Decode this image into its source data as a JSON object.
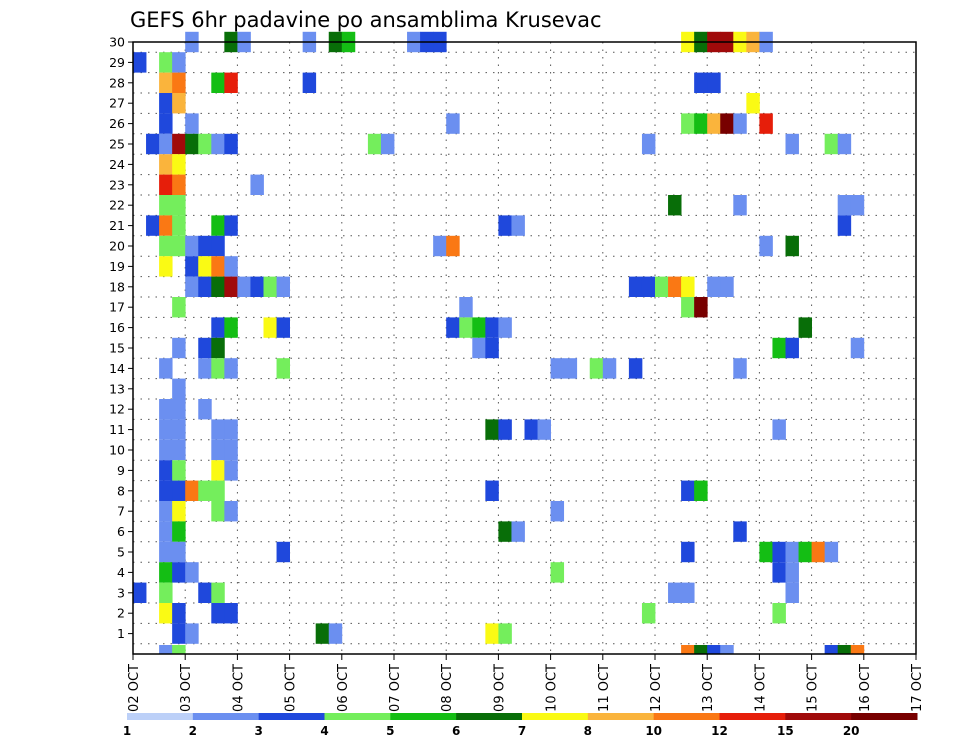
{
  "chart_data": {
    "type": "heatmap",
    "title": "GEFS 6hr padavine po ansamblima Krusevac",
    "y_ticks": [
      "1",
      "2",
      "3",
      "4",
      "5",
      "6",
      "7",
      "8",
      "9",
      "10",
      "11",
      "12",
      "13",
      "14",
      "15",
      "16",
      "17",
      "18",
      "19",
      "20",
      "21",
      "22",
      "23",
      "24",
      "25",
      "26",
      "27",
      "28",
      "29",
      "30"
    ],
    "x_ticks": [
      "02 OCT",
      "03 OCT",
      "04 OCT",
      "05 OCT",
      "06 OCT",
      "07 OCT",
      "08 OCT",
      "09 OCT",
      "10 OCT",
      "11 OCT",
      "12 OCT",
      "13 OCT",
      "14 OCT",
      "15 OCT",
      "16 OCT",
      "17 OCT"
    ],
    "legend": {
      "position": "bottom",
      "colors": [
        "#bcd0f8",
        "#6b8ff0",
        "#1f48dc",
        "#74ee5c",
        "#14be14",
        "#086e08",
        "#fafa14",
        "#fab43c",
        "#fa7814",
        "#e61e0a",
        "#a00a0a",
        "#780000"
      ],
      "labels": [
        "1",
        "2",
        "3",
        "4",
        "5",
        "6",
        "7",
        "8",
        "10",
        "12",
        "15",
        "20"
      ]
    },
    "grid": true,
    "cells": [
      [
        3.0,
        30,
        1
      ],
      [
        3.75,
        30,
        5
      ],
      [
        4.0,
        30,
        1
      ],
      [
        5.25,
        30,
        1
      ],
      [
        5.75,
        30,
        5
      ],
      [
        6.0,
        30,
        4
      ],
      [
        7.25,
        30,
        1
      ],
      [
        7.5,
        30,
        2
      ],
      [
        7.75,
        30,
        2
      ],
      [
        12.5,
        30,
        6
      ],
      [
        12.75,
        30,
        5
      ],
      [
        13.0,
        30,
        10
      ],
      [
        13.25,
        30,
        10
      ],
      [
        13.5,
        30,
        6
      ],
      [
        13.75,
        30,
        7
      ],
      [
        14.0,
        30,
        1
      ],
      [
        2.0,
        29,
        2
      ],
      [
        2.5,
        29,
        3
      ],
      [
        2.75,
        29,
        1
      ],
      [
        2.5,
        28,
        7
      ],
      [
        2.75,
        28,
        8
      ],
      [
        3.5,
        28,
        4
      ],
      [
        3.75,
        28,
        9
      ],
      [
        5.25,
        28,
        2
      ],
      [
        12.75,
        28,
        2
      ],
      [
        13.0,
        28,
        2
      ],
      [
        2.5,
        27,
        2
      ],
      [
        2.75,
        27,
        7
      ],
      [
        13.75,
        27,
        6
      ],
      [
        2.5,
        26,
        2
      ],
      [
        3.0,
        26,
        1
      ],
      [
        8.0,
        26,
        1
      ],
      [
        12.5,
        26,
        3
      ],
      [
        12.75,
        26,
        4
      ],
      [
        13.0,
        26,
        7
      ],
      [
        13.25,
        26,
        11
      ],
      [
        13.5,
        26,
        1
      ],
      [
        14.0,
        26,
        9
      ],
      [
        2.25,
        25,
        2
      ],
      [
        2.5,
        25,
        1
      ],
      [
        2.75,
        25,
        10
      ],
      [
        3.0,
        25,
        5
      ],
      [
        3.25,
        25,
        3
      ],
      [
        3.5,
        25,
        1
      ],
      [
        3.75,
        25,
        2
      ],
      [
        6.5,
        25,
        3
      ],
      [
        6.75,
        25,
        1
      ],
      [
        11.75,
        25,
        1
      ],
      [
        14.5,
        25,
        1
      ],
      [
        15.25,
        25,
        3
      ],
      [
        15.5,
        25,
        1
      ],
      [
        2.5,
        24,
        7
      ],
      [
        2.75,
        24,
        6
      ],
      [
        2.5,
        23,
        9
      ],
      [
        2.75,
        23,
        8
      ],
      [
        4.25,
        23,
        1
      ],
      [
        2.5,
        22,
        3
      ],
      [
        2.75,
        22,
        3
      ],
      [
        12.25,
        22,
        5
      ],
      [
        13.5,
        22,
        1
      ],
      [
        15.5,
        22,
        1
      ],
      [
        15.75,
        22,
        1
      ],
      [
        2.25,
        21,
        2
      ],
      [
        2.5,
        21,
        8
      ],
      [
        2.75,
        21,
        3
      ],
      [
        3.5,
        21,
        4
      ],
      [
        3.75,
        21,
        2
      ],
      [
        9.0,
        21,
        2
      ],
      [
        9.25,
        21,
        1
      ],
      [
        15.5,
        21,
        2
      ],
      [
        2.5,
        20,
        3
      ],
      [
        2.75,
        20,
        3
      ],
      [
        3.0,
        20,
        1
      ],
      [
        3.25,
        20,
        2
      ],
      [
        3.5,
        20,
        2
      ],
      [
        7.75,
        20,
        1
      ],
      [
        8.0,
        20,
        8
      ],
      [
        14.0,
        20,
        1
      ],
      [
        14.5,
        20,
        5
      ],
      [
        2.5,
        19,
        6
      ],
      [
        3.0,
        19,
        2
      ],
      [
        3.25,
        19,
        6
      ],
      [
        3.5,
        19,
        8
      ],
      [
        3.75,
        19,
        1
      ],
      [
        3.0,
        18,
        1
      ],
      [
        3.25,
        18,
        2
      ],
      [
        3.5,
        18,
        5
      ],
      [
        3.75,
        18,
        10
      ],
      [
        4.0,
        18,
        1
      ],
      [
        4.25,
        18,
        2
      ],
      [
        4.5,
        18,
        3
      ],
      [
        4.75,
        18,
        1
      ],
      [
        11.5,
        18,
        2
      ],
      [
        11.75,
        18,
        2
      ],
      [
        12.0,
        18,
        3
      ],
      [
        12.25,
        18,
        8
      ],
      [
        12.5,
        18,
        6
      ],
      [
        13.0,
        18,
        1
      ],
      [
        13.25,
        18,
        1
      ],
      [
        2.75,
        17,
        3
      ],
      [
        8.25,
        17,
        1
      ],
      [
        12.5,
        17,
        3
      ],
      [
        12.75,
        17,
        11
      ],
      [
        3.5,
        16,
        2
      ],
      [
        3.75,
        16,
        4
      ],
      [
        4.5,
        16,
        6
      ],
      [
        4.75,
        16,
        2
      ],
      [
        8.0,
        16,
        2
      ],
      [
        8.25,
        16,
        3
      ],
      [
        8.5,
        16,
        4
      ],
      [
        8.75,
        16,
        2
      ],
      [
        9.0,
        16,
        1
      ],
      [
        14.75,
        16,
        5
      ],
      [
        2.75,
        15,
        1
      ],
      [
        3.25,
        15,
        2
      ],
      [
        3.5,
        15,
        5
      ],
      [
        8.5,
        15,
        1
      ],
      [
        8.75,
        15,
        2
      ],
      [
        14.25,
        15,
        4
      ],
      [
        14.5,
        15,
        2
      ],
      [
        15.75,
        15,
        1
      ],
      [
        2.5,
        14,
        1
      ],
      [
        3.25,
        14,
        1
      ],
      [
        3.5,
        14,
        3
      ],
      [
        3.75,
        14,
        1
      ],
      [
        4.75,
        14,
        3
      ],
      [
        10.0,
        14,
        1
      ],
      [
        10.25,
        14,
        1
      ],
      [
        10.75,
        14,
        3
      ],
      [
        11.0,
        14,
        1
      ],
      [
        11.5,
        14,
        2
      ],
      [
        13.5,
        14,
        1
      ],
      [
        2.75,
        13,
        1
      ],
      [
        2.5,
        12,
        1
      ],
      [
        2.75,
        12,
        1
      ],
      [
        3.25,
        12,
        1
      ],
      [
        2.5,
        11,
        1
      ],
      [
        2.75,
        11,
        1
      ],
      [
        3.5,
        11,
        1
      ],
      [
        3.75,
        11,
        1
      ],
      [
        8.75,
        11,
        5
      ],
      [
        9.0,
        11,
        2
      ],
      [
        9.5,
        11,
        2
      ],
      [
        9.75,
        11,
        1
      ],
      [
        14.25,
        11,
        1
      ],
      [
        2.5,
        10,
        1
      ],
      [
        2.75,
        10,
        1
      ],
      [
        3.5,
        10,
        1
      ],
      [
        3.75,
        10,
        1
      ],
      [
        2.5,
        9,
        2
      ],
      [
        2.75,
        9,
        3
      ],
      [
        3.5,
        9,
        6
      ],
      [
        3.75,
        9,
        1
      ],
      [
        2.5,
        8,
        2
      ],
      [
        2.75,
        8,
        2
      ],
      [
        3.0,
        8,
        8
      ],
      [
        3.25,
        8,
        3
      ],
      [
        3.5,
        8,
        3
      ],
      [
        8.75,
        8,
        2
      ],
      [
        12.5,
        8,
        2
      ],
      [
        12.75,
        8,
        4
      ],
      [
        2.5,
        7,
        1
      ],
      [
        2.75,
        7,
        6
      ],
      [
        3.5,
        7,
        3
      ],
      [
        3.75,
        7,
        1
      ],
      [
        10.0,
        7,
        1
      ],
      [
        2.5,
        6,
        1
      ],
      [
        2.75,
        6,
        4
      ],
      [
        9.0,
        6,
        5
      ],
      [
        9.25,
        6,
        1
      ],
      [
        13.5,
        6,
        2
      ],
      [
        2.5,
        5,
        1
      ],
      [
        2.75,
        5,
        1
      ],
      [
        4.75,
        5,
        2
      ],
      [
        12.5,
        5,
        2
      ],
      [
        14.0,
        5,
        4
      ],
      [
        14.25,
        5,
        2
      ],
      [
        14.5,
        5,
        1
      ],
      [
        14.75,
        5,
        4
      ],
      [
        15.0,
        5,
        8
      ],
      [
        15.25,
        5,
        1
      ],
      [
        2.5,
        4,
        4
      ],
      [
        2.75,
        4,
        2
      ],
      [
        3.0,
        4,
        1
      ],
      [
        10.0,
        4,
        3
      ],
      [
        14.25,
        4,
        2
      ],
      [
        14.5,
        4,
        1
      ],
      [
        2.0,
        3,
        2
      ],
      [
        2.5,
        3,
        3
      ],
      [
        3.25,
        3,
        2
      ],
      [
        3.5,
        3,
        3
      ],
      [
        12.25,
        3,
        1
      ],
      [
        12.5,
        3,
        1
      ],
      [
        14.5,
        3,
        1
      ],
      [
        2.5,
        2,
        6
      ],
      [
        2.75,
        2,
        2
      ],
      [
        3.5,
        2,
        2
      ],
      [
        3.75,
        2,
        2
      ],
      [
        11.75,
        2,
        3
      ],
      [
        14.25,
        2,
        3
      ],
      [
        2.75,
        1,
        2
      ],
      [
        3.0,
        1,
        1
      ],
      [
        5.5,
        1,
        5
      ],
      [
        5.75,
        1,
        1
      ],
      [
        8.75,
        1,
        6
      ],
      [
        9.0,
        1,
        3
      ],
      [
        2.5,
        0,
        1
      ],
      [
        2.75,
        0,
        3
      ],
      [
        12.5,
        0,
        8
      ],
      [
        12.75,
        0,
        5
      ],
      [
        13.0,
        0,
        2
      ],
      [
        13.25,
        0,
        1
      ],
      [
        15.25,
        0,
        2
      ],
      [
        15.5,
        0,
        5
      ],
      [
        15.75,
        0,
        8
      ]
    ]
  }
}
